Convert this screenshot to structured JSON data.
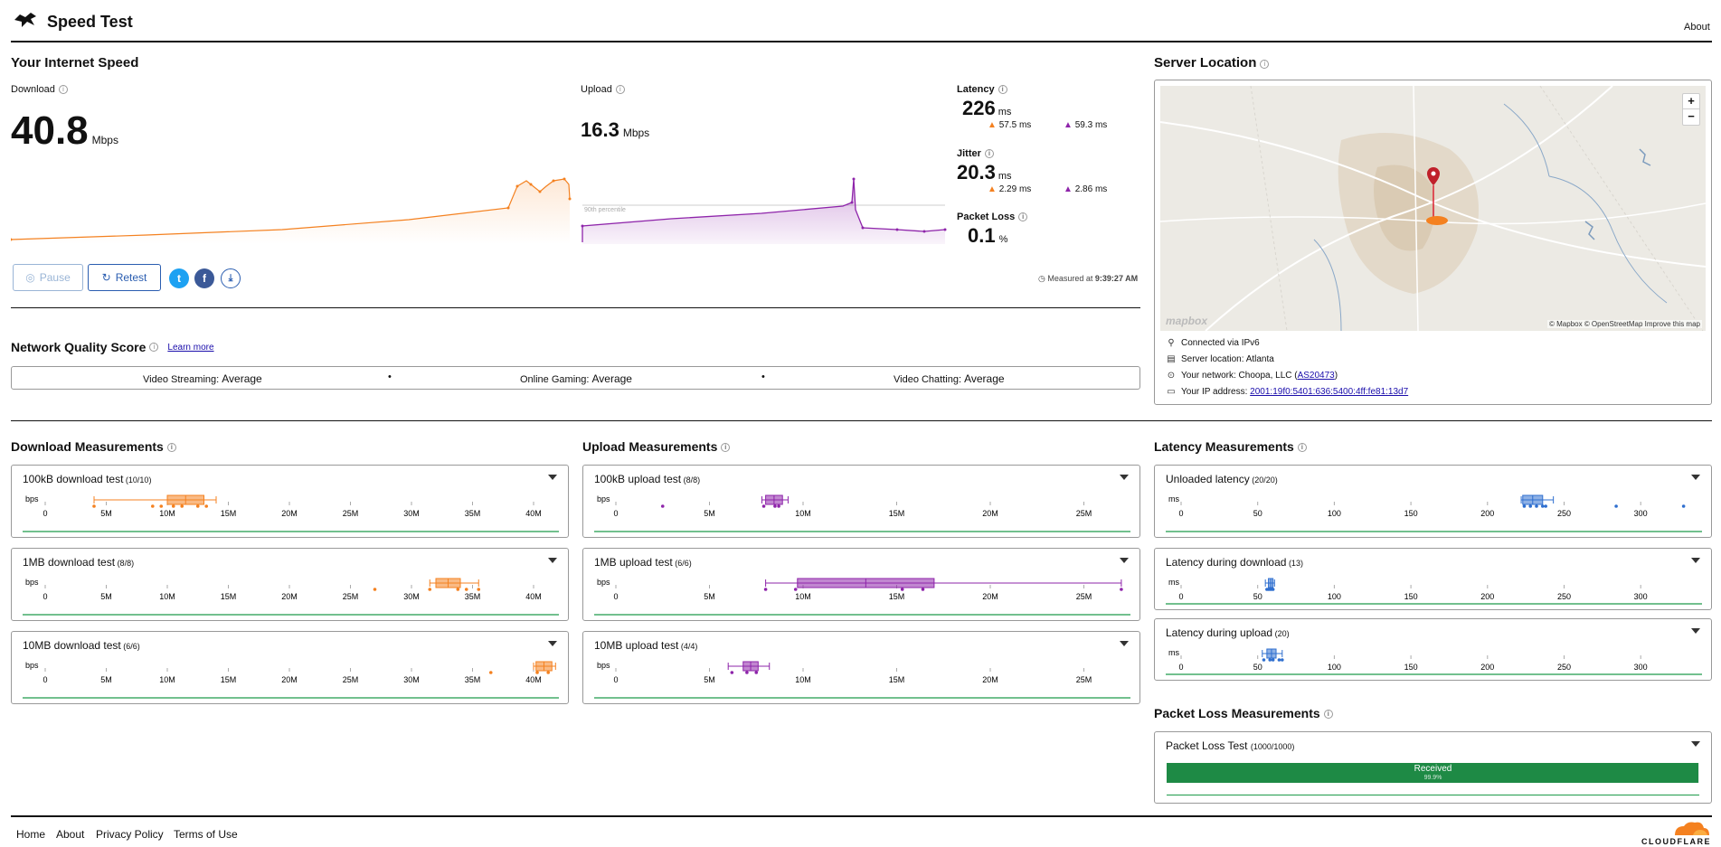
{
  "header": {
    "title": "Speed Test",
    "about": "About"
  },
  "speed": {
    "title": "Your Internet Speed",
    "download": {
      "label": "Download",
      "value": "40.8",
      "unit": "Mbps"
    },
    "upload": {
      "label": "Upload",
      "value": "16.3",
      "unit": "Mbps",
      "percentile": "90th percentile"
    },
    "latency": {
      "label": "Latency",
      "value": "226",
      "unit": "ms",
      "down": "57.5",
      "up": "59.3",
      "sub_unit": "ms"
    },
    "jitter": {
      "label": "Jitter",
      "value": "20.3",
      "unit": "ms",
      "down": "2.29",
      "up": "2.86",
      "sub_unit": "ms"
    },
    "packet_loss": {
      "label": "Packet Loss",
      "value": "0.1",
      "unit": "%"
    },
    "pause": "Pause",
    "retest": "Retest",
    "measured": "Measured at",
    "measured_time": "9:39:27 AM"
  },
  "nqs": {
    "title": "Network Quality Score",
    "learn": "Learn more",
    "items": [
      {
        "label": "Video Streaming:",
        "value": "Average"
      },
      {
        "label": "Online Gaming:",
        "value": "Average"
      },
      {
        "label": "Video Chatting:",
        "value": "Average"
      }
    ]
  },
  "server": {
    "title": "Server Location",
    "mapbox": "mapbox",
    "credits": "© Mapbox © OpenStreetMap  Improve this map",
    "connected": "Connected via IPv6",
    "location": "Server location: Atlanta",
    "network_prefix": "Your network: Choopa, LLC (",
    "network_asn": "AS20473",
    "network_suffix": ")",
    "ip_prefix": "Your IP address: ",
    "ip": "2001:19f0:5401:636:5400:4ff:fe81:13d7",
    "zoom_in": "+",
    "zoom_out": "−"
  },
  "download_m": {
    "title": "Download Measurements",
    "unit": "bps",
    "ticks": [
      "0",
      "5M",
      "10M",
      "15M",
      "20M",
      "25M",
      "30M",
      "35M",
      "40M"
    ],
    "tests": [
      {
        "name": "100kB download test",
        "count": "(10/10)"
      },
      {
        "name": "1MB download test",
        "count": "(8/8)"
      },
      {
        "name": "10MB download test",
        "count": "(6/6)"
      }
    ]
  },
  "upload_m": {
    "title": "Upload Measurements",
    "unit": "bps",
    "ticks": [
      "0",
      "5M",
      "10M",
      "15M",
      "20M",
      "25M"
    ],
    "tests": [
      {
        "name": "100kB upload test",
        "count": "(8/8)"
      },
      {
        "name": "1MB upload test",
        "count": "(6/6)"
      },
      {
        "name": "10MB upload test",
        "count": "(4/4)"
      }
    ]
  },
  "latency_m": {
    "title": "Latency Measurements",
    "unit": "ms",
    "ticks": [
      "0",
      "50",
      "100",
      "150",
      "200",
      "250",
      "300"
    ],
    "tests": [
      {
        "name": "Unloaded latency",
        "count": "(20/20)"
      },
      {
        "name": "Latency during download",
        "count": "(13)"
      },
      {
        "name": "Latency during upload",
        "count": "(20)"
      }
    ]
  },
  "packet_m": {
    "title": "Packet Loss Measurements",
    "test": "Packet Loss Test",
    "count": "(1000/1000)",
    "bar_label": "Received",
    "bar_value": "99.9%",
    "received_fraction": 0.999
  },
  "footer": {
    "home": "Home",
    "about": "About",
    "privacy": "Privacy Policy",
    "terms": "Terms of Use",
    "brand": "CLOUDFLARE"
  },
  "colors": {
    "download": "#f48120",
    "upload": "#8e24aa",
    "latency": "#2f6fcf",
    "good": "#1e9a4a",
    "link": "#1a0dab"
  }
}
